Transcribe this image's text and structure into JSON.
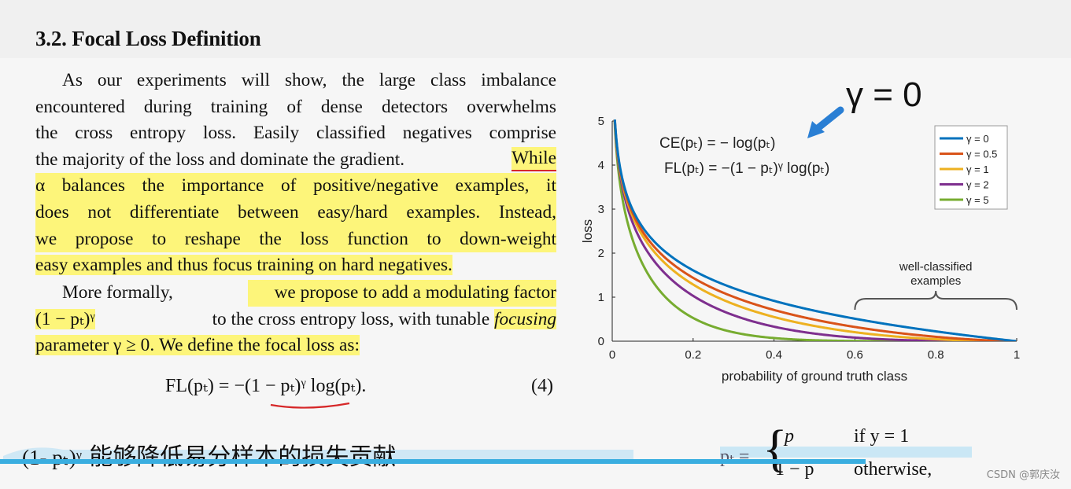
{
  "paper": {
    "section_title": "3.2. Focal Loss Definition",
    "paragraph1_lines": [
      "As our experiments will show, the large class imbalance",
      "encountered during training of dense detectors overwhelms",
      "the cross entropy loss. Easily classified negatives comprise",
      "the majority of the loss and dominate the gradient.",
      "While",
      "α balances the importance of positive/negative examples, it",
      "does not differentiate between easy/hard examples. Instead,",
      "we propose to reshape the loss function to down-weight",
      "easy examples and thus focus training on hard negatives."
    ],
    "paragraph2_lines": [
      "More formally,",
      "we propose to add a modulating factor",
      "(1 − pₜ)ᵞ",
      "to the cross entropy loss, with tunable",
      "focusing",
      "parameter γ ≥ 0. We define the focal loss as:"
    ],
    "equation": "FL(pₜ) = −(1 − pₜ)ᵞ log(pₜ).",
    "equation_number": "(4)",
    "pt_definition": {
      "lhs": "pₜ =",
      "case1_value": "p",
      "case1_cond": "if y = 1",
      "case2_value": "1 − p",
      "case2_cond": "otherwise,"
    }
  },
  "annotation": {
    "gamma_label": "γ = 0",
    "subtitle_math": "(1- pₜ)ᵞ",
    "subtitle_text": "能够降低易分样本的损失贡献",
    "arrow_color": "#2a7fd4",
    "underline_color": "#d62728",
    "highlight_color": "#fdf57a"
  },
  "watermark": "CSDN @郭庆汝",
  "chart_data": {
    "type": "line",
    "xlabel": "probability of ground truth class",
    "ylabel": "loss",
    "xlim": [
      0,
      1
    ],
    "ylim": [
      0,
      5
    ],
    "xticks": [
      "0",
      "0.2",
      "0.4",
      "0.6",
      "0.8",
      "1"
    ],
    "yticks": [
      "0",
      "1",
      "2",
      "3",
      "4",
      "5"
    ],
    "formula_ce": "CE(pₜ) = − log(pₜ)",
    "formula_fl": "FL(pₜ) = −(1 − pₜ)ᵞ log(pₜ)",
    "annotation": "well-classified examples",
    "annotation_lines": [
      "well-classified",
      "examples"
    ],
    "annotation_range": [
      0.6,
      1.0
    ],
    "legend_position": "top-right",
    "series": [
      {
        "name": "γ = 0",
        "gamma": 0,
        "color": "#0072bd"
      },
      {
        "name": "γ = 0.5",
        "gamma": 0.5,
        "color": "#d95319"
      },
      {
        "name": "γ = 1",
        "gamma": 1,
        "color": "#edb120"
      },
      {
        "name": "γ = 2",
        "gamma": 2,
        "color": "#7e2f8e"
      },
      {
        "name": "γ = 5",
        "gamma": 5,
        "color": "#77ac30"
      }
    ]
  }
}
